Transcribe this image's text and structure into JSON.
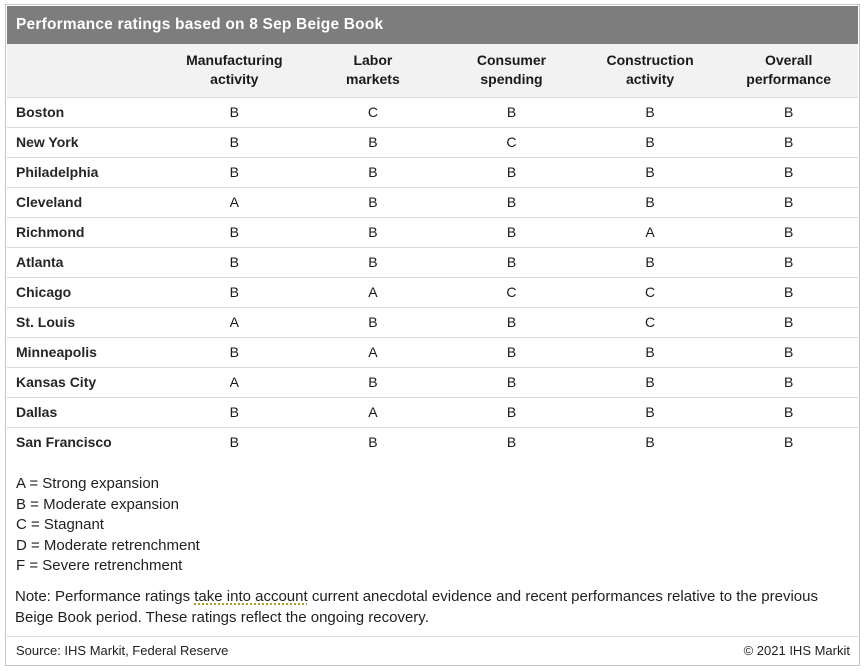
{
  "chart_data": {
    "type": "table",
    "title": "Performance ratings based on 8 Sep Beige Book",
    "columns": [
      "Manufacturing activity",
      "Labor markets",
      "Consumer spending",
      "Construction activity",
      "Overall performance"
    ],
    "row_header_label": "",
    "rows": [
      {
        "district": "Boston",
        "ratings": [
          "B",
          "C",
          "B",
          "B",
          "B"
        ]
      },
      {
        "district": "New York",
        "ratings": [
          "B",
          "B",
          "C",
          "B",
          "B"
        ]
      },
      {
        "district": "Philadelphia",
        "ratings": [
          "B",
          "B",
          "B",
          "B",
          "B"
        ]
      },
      {
        "district": "Cleveland",
        "ratings": [
          "A",
          "B",
          "B",
          "B",
          "B"
        ]
      },
      {
        "district": "Richmond",
        "ratings": [
          "B",
          "B",
          "B",
          "A",
          "B"
        ]
      },
      {
        "district": "Atlanta",
        "ratings": [
          "B",
          "B",
          "B",
          "B",
          "B"
        ]
      },
      {
        "district": "Chicago",
        "ratings": [
          "B",
          "A",
          "C",
          "C",
          "B"
        ]
      },
      {
        "district": "St. Louis",
        "ratings": [
          "A",
          "B",
          "B",
          "C",
          "B"
        ]
      },
      {
        "district": "Minneapolis",
        "ratings": [
          "B",
          "A",
          "B",
          "B",
          "B"
        ]
      },
      {
        "district": "Kansas City",
        "ratings": [
          "A",
          "B",
          "B",
          "B",
          "B"
        ]
      },
      {
        "district": "Dallas",
        "ratings": [
          "B",
          "A",
          "B",
          "B",
          "B"
        ]
      },
      {
        "district": "San Francisco",
        "ratings": [
          "B",
          "B",
          "B",
          "B",
          "B"
        ]
      }
    ],
    "legend": [
      "A = Strong expansion",
      "B = Moderate expansion",
      "C = Stagnant",
      "D = Moderate retrenchment",
      "F = Severe retrenchment"
    ],
    "note": {
      "prefix": "Note: Performance ratings ",
      "underlined_phrase": "take into account",
      "suffix": " current anecdotal evidence and recent performances relative to the previous Beige Book period. These ratings reflect the ongoing recovery."
    },
    "source": "Source: IHS Markit, Federal Reserve",
    "copyright": "© 2021 IHS Markit"
  },
  "colors": {
    "title_bar_bg": "#7d7d7d",
    "title_text": "#ffffff",
    "header_bg": "#f2f2f2",
    "grid_line": "#d9d9d9",
    "frame_border": "#c6c6c6",
    "note_underline": "#b09a30",
    "body_text": "#1a1a1a"
  }
}
